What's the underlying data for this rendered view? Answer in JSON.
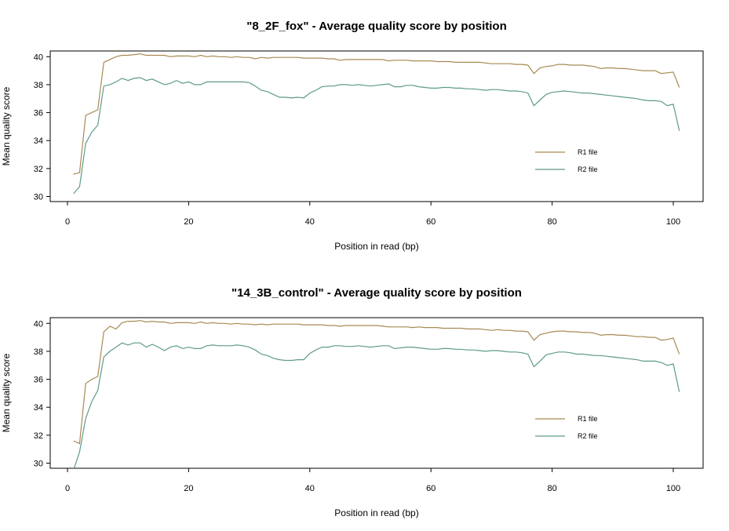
{
  "colors": {
    "r1": "#a88a52",
    "r2": "#5f9a8c",
    "axis": "#000000"
  },
  "chart_data": [
    {
      "type": "line",
      "title": "\"8_2F_fox\" - Average quality score by position",
      "xlabel": "Position in read (bp)",
      "ylabel": "Mean quality score",
      "xlim": [
        0,
        101
      ],
      "ylim": [
        30,
        40.5
      ],
      "xticks": [
        0,
        20,
        40,
        60,
        80,
        100
      ],
      "yticks": [
        30,
        32,
        34,
        36,
        38,
        40
      ],
      "legend_position": "bottom-right",
      "x": [
        1,
        2,
        3,
        4,
        5,
        6,
        7,
        8,
        9,
        10,
        11,
        12,
        13,
        14,
        15,
        16,
        17,
        18,
        19,
        20,
        21,
        22,
        23,
        24,
        25,
        26,
        27,
        28,
        29,
        30,
        31,
        32,
        33,
        34,
        35,
        36,
        37,
        38,
        39,
        40,
        41,
        42,
        43,
        44,
        45,
        46,
        47,
        48,
        49,
        50,
        51,
        52,
        53,
        54,
        55,
        56,
        57,
        58,
        59,
        60,
        61,
        62,
        63,
        64,
        65,
        66,
        67,
        68,
        69,
        70,
        71,
        72,
        73,
        74,
        75,
        76,
        77,
        78,
        79,
        80,
        81,
        82,
        83,
        84,
        85,
        86,
        87,
        88,
        89,
        90,
        91,
        92,
        93,
        94,
        95,
        96,
        97,
        98,
        99,
        100,
        101
      ],
      "series": [
        {
          "name": "R1 file",
          "color_key": "r1",
          "values": [
            31.6,
            31.7,
            35.8,
            36.0,
            36.2,
            39.6,
            39.8,
            40.0,
            40.1,
            40.1,
            40.15,
            40.2,
            40.1,
            40.1,
            40.1,
            40.1,
            40.0,
            40.05,
            40.05,
            40.05,
            40.0,
            40.1,
            40.0,
            40.05,
            40.0,
            40.0,
            39.95,
            40.0,
            39.95,
            39.95,
            39.85,
            39.95,
            39.9,
            39.95,
            39.95,
            39.95,
            39.95,
            39.95,
            39.9,
            39.9,
            39.9,
            39.9,
            39.85,
            39.85,
            39.75,
            39.8,
            39.8,
            39.8,
            39.8,
            39.8,
            39.8,
            39.8,
            39.7,
            39.75,
            39.75,
            39.75,
            39.7,
            39.7,
            39.7,
            39.7,
            39.65,
            39.65,
            39.65,
            39.6,
            39.6,
            39.6,
            39.6,
            39.6,
            39.55,
            39.5,
            39.5,
            39.5,
            39.5,
            39.45,
            39.45,
            39.4,
            38.8,
            39.2,
            39.3,
            39.35,
            39.45,
            39.45,
            39.4,
            39.4,
            39.4,
            39.35,
            39.3,
            39.15,
            39.2,
            39.2,
            39.15,
            39.15,
            39.1,
            39.05,
            39.0,
            39.0,
            39.0,
            38.8,
            38.85,
            38.9,
            37.8
          ]
        },
        {
          "name": "R2 file",
          "color_key": "r2",
          "values": [
            30.2,
            30.7,
            33.8,
            34.6,
            35.1,
            37.9,
            38.0,
            38.2,
            38.45,
            38.3,
            38.45,
            38.5,
            38.3,
            38.4,
            38.2,
            38.0,
            38.1,
            38.3,
            38.1,
            38.2,
            38.0,
            38.0,
            38.2,
            38.2,
            38.2,
            38.2,
            38.2,
            38.2,
            38.2,
            38.15,
            37.9,
            37.6,
            37.5,
            37.3,
            37.1,
            37.1,
            37.05,
            37.1,
            37.05,
            37.4,
            37.6,
            37.85,
            37.9,
            37.9,
            38.0,
            38.0,
            37.95,
            38.0,
            37.95,
            37.9,
            37.95,
            38.0,
            38.05,
            37.85,
            37.85,
            37.95,
            37.95,
            37.85,
            37.8,
            37.75,
            37.75,
            37.8,
            37.8,
            37.75,
            37.75,
            37.7,
            37.7,
            37.65,
            37.6,
            37.65,
            37.65,
            37.6,
            37.55,
            37.55,
            37.5,
            37.4,
            36.5,
            36.9,
            37.3,
            37.45,
            37.5,
            37.55,
            37.5,
            37.45,
            37.4,
            37.4,
            37.35,
            37.3,
            37.25,
            37.2,
            37.15,
            37.1,
            37.05,
            37.0,
            36.9,
            36.85,
            36.85,
            36.8,
            36.5,
            36.6,
            34.7
          ]
        }
      ]
    },
    {
      "type": "line",
      "title": "\"14_3B_control\" - Average quality score by position",
      "xlabel": "Position in read (bp)",
      "ylabel": "Mean quality score",
      "xlim": [
        0,
        101
      ],
      "ylim": [
        29.6,
        40.3
      ],
      "xticks": [
        0,
        20,
        40,
        60,
        80,
        100
      ],
      "yticks": [
        30,
        32,
        34,
        36,
        38,
        40
      ],
      "legend_position": "bottom-right",
      "x": [
        1,
        2,
        3,
        4,
        5,
        6,
        7,
        8,
        9,
        10,
        11,
        12,
        13,
        14,
        15,
        16,
        17,
        18,
        19,
        20,
        21,
        22,
        23,
        24,
        25,
        26,
        27,
        28,
        29,
        30,
        31,
        32,
        33,
        34,
        35,
        36,
        37,
        38,
        39,
        40,
        41,
        42,
        43,
        44,
        45,
        46,
        47,
        48,
        49,
        50,
        51,
        52,
        53,
        54,
        55,
        56,
        57,
        58,
        59,
        60,
        61,
        62,
        63,
        64,
        65,
        66,
        67,
        68,
        69,
        70,
        71,
        72,
        73,
        74,
        75,
        76,
        77,
        78,
        79,
        80,
        81,
        82,
        83,
        84,
        85,
        86,
        87,
        88,
        89,
        90,
        91,
        92,
        93,
        94,
        95,
        96,
        97,
        98,
        99,
        100,
        101
      ],
      "series": [
        {
          "name": "R1 file",
          "color_key": "r1",
          "values": [
            31.6,
            31.4,
            35.7,
            36.0,
            36.2,
            39.4,
            39.8,
            39.6,
            40.05,
            40.15,
            40.15,
            40.2,
            40.1,
            40.15,
            40.1,
            40.1,
            40.0,
            40.05,
            40.05,
            40.05,
            40.0,
            40.1,
            40.0,
            40.05,
            40.0,
            40.0,
            39.95,
            40.0,
            39.95,
            39.95,
            39.9,
            39.95,
            39.9,
            39.95,
            39.95,
            39.95,
            39.95,
            39.95,
            39.9,
            39.9,
            39.9,
            39.9,
            39.85,
            39.85,
            39.8,
            39.85,
            39.85,
            39.85,
            39.85,
            39.85,
            39.85,
            39.8,
            39.75,
            39.75,
            39.75,
            39.75,
            39.7,
            39.75,
            39.7,
            39.7,
            39.7,
            39.65,
            39.65,
            39.65,
            39.65,
            39.6,
            39.6,
            39.6,
            39.55,
            39.5,
            39.55,
            39.5,
            39.5,
            39.45,
            39.45,
            39.4,
            38.8,
            39.2,
            39.3,
            39.4,
            39.45,
            39.45,
            39.4,
            39.4,
            39.35,
            39.35,
            39.3,
            39.15,
            39.2,
            39.2,
            39.15,
            39.15,
            39.1,
            39.05,
            39.05,
            39.0,
            39.0,
            38.8,
            38.85,
            38.95,
            37.8
          ]
        },
        {
          "name": "R2 file",
          "color_key": "r2",
          "values": [
            29.5,
            30.8,
            33.2,
            34.4,
            35.2,
            37.6,
            38.0,
            38.3,
            38.6,
            38.45,
            38.6,
            38.6,
            38.3,
            38.5,
            38.3,
            38.05,
            38.3,
            38.4,
            38.2,
            38.3,
            38.2,
            38.2,
            38.4,
            38.45,
            38.4,
            38.4,
            38.4,
            38.45,
            38.4,
            38.3,
            38.1,
            37.8,
            37.7,
            37.5,
            37.4,
            37.35,
            37.35,
            37.4,
            37.4,
            37.85,
            38.1,
            38.3,
            38.3,
            38.4,
            38.4,
            38.35,
            38.35,
            38.4,
            38.35,
            38.3,
            38.35,
            38.4,
            38.4,
            38.2,
            38.25,
            38.3,
            38.3,
            38.25,
            38.2,
            38.15,
            38.15,
            38.2,
            38.2,
            38.15,
            38.15,
            38.1,
            38.1,
            38.05,
            38.0,
            38.05,
            38.05,
            38.0,
            37.95,
            37.95,
            37.9,
            37.8,
            36.9,
            37.3,
            37.75,
            37.85,
            37.95,
            37.95,
            37.9,
            37.8,
            37.8,
            37.75,
            37.7,
            37.7,
            37.65,
            37.6,
            37.55,
            37.5,
            37.45,
            37.4,
            37.3,
            37.3,
            37.3,
            37.2,
            37.0,
            37.1,
            35.1
          ]
        }
      ]
    }
  ]
}
